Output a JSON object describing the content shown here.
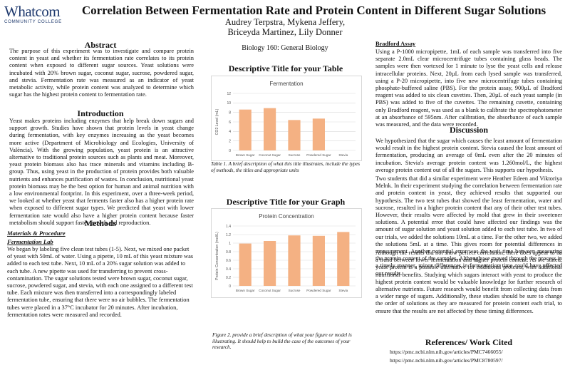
{
  "logo": {
    "name": "Whatcom",
    "subtitle": "COMMUNITY COLLEGE"
  },
  "title": "Correlation Between Fermentation Rate and Protein Content in Different Sugar Solutions",
  "authors": [
    "Audrey Terpstra, Mykena Jeffery,",
    "Briceyda Martinez, Lily Donner"
  ],
  "course": "Biology 160: General Biology",
  "abstract": {
    "heading": "Abstract",
    "text": "The purpose of this experiment was to investigate and compare protein content in yeast and whether its fermentation rate correlates to its protein content when exposed to different sugar sources. Yeast solutions were incubated with 20% brown sugar, coconut sugar, sucrose, powdered sugar, and stevia. Fermentation rate was measured as an indicator of yeast metabolic activity, while protein content was analyzed to determine which sugar has the highest protein content to fermentation rate."
  },
  "introduction": {
    "heading": "Introduction",
    "text": "Yeast makes proteins including enzymes that help break down sugars and support growth. Studies have shown that protein levels in yeast change during fermentation, with key enzymes increasing as the yeast becomes more active (Department of Microbiology and Ecologies, University of València). With the growing population, yeast protein is an attractive alternative to traditional protein sources such as plants and meat. Moreover, yeast protein biomass also has trace minerals and vitamins including B-group. Thus, using yeast in the production of protein provides both valuable nutrients and enhances purification of wastes. In conclusion, nutritional yeast protein biomass may be the best option for human and animal nutrition with a low environmental footprint. In this experiment, over a three-week period, we looked at whether yeast that ferments faster also has a higher protein rate when exposed to different sugar types. We predicted that yeast with lower fermentation rate would also have a higher protein content because faster metabolism should support faster growth and reproduction."
  },
  "methods": {
    "heading": "Methods",
    "sub1": "Materials & Procedure",
    "sub2": "Fermentation Lab",
    "text": "We began by labeling five clean test tubes (1-5). Next, we mixed one packet of yeast with 50mL of water. Using a pipette, 10 mL of this yeast mixture was added to each test tube. Next, 10 mL of a 20% sugar solution was added to each tube. A new pipette was used for transferring to prevent cross-contamination. The sugar solutions tested were brown sugar, coconut sugar, sucrose, powdered sugar, and stevia, with each one assigned to a different test tube. Each mixture was then transferred into a correspondingly labeled fermentation tube, ensuring that there were no air bubbles. The fermentation tubes were placed in a 37°C incubator for 20 minutes. After incubation, fermentation rates were measured and recorded."
  },
  "table_section": {
    "heading": "Descriptive Title for your Table",
    "caption": "Table 1. A brief description of what this title illustrates, include the types of methods, the titles and appropriate units"
  },
  "graph_section": {
    "heading": "Descriptive Title for your Graph",
    "caption": "Figure 2. provide a brief description of what your figure or model is illustrating. It should help to build the case of the outcomes of your research."
  },
  "chart_data": [
    {
      "type": "bar",
      "title": "Fermentation",
      "ylabel": "CO2 Level (mL)",
      "xlabel": "",
      "categories": [
        "Brown Sugar",
        "Coconut Sugar",
        "Sucrose",
        "Powdered Sugar",
        "Stevia"
      ],
      "values": [
        8.6,
        8.9,
        6.4,
        6.7,
        0
      ],
      "ylim": [
        0,
        12
      ],
      "yticks": [
        0,
        2,
        4,
        6,
        8,
        10,
        12
      ],
      "grid": true,
      "color": "#f4b183"
    },
    {
      "type": "bar",
      "title": "Protein Concentration",
      "ylabel": "Protein Concentration (mol/L)",
      "xlabel": "",
      "categories": [
        "Brown Sugar",
        "Coconut Sugar",
        "Sucrose",
        "Powdered Sugar",
        "Stevia"
      ],
      "values": [
        0.99,
        1.05,
        1.18,
        1.17,
        1.26
      ],
      "ylim": [
        0,
        1.4
      ],
      "yticks": [
        0,
        0.2,
        0.4,
        0.6,
        0.8,
        1,
        1.2,
        1.4
      ],
      "ytick_labels": [
        "0",
        "0.2",
        "0.4",
        "0.6",
        "0.8",
        "1",
        "1.2",
        "1.4"
      ],
      "grid": true,
      "color": "#f4b183"
    }
  ],
  "bradford": {
    "heading": "Bradford Assay",
    "text": "Using a P-1000 micropipette, 1mL of each sample was transferred into five separate 2.0mL clear microcentrifuge tubes containing glass beads. The samples were then vortexed for 1 minute to lyse the yeast cells and release intracellular proteins. Next, 20µL from each lysed sample was transferred, using a P-20 micropipette, into five new microcentrifuge tubes containing phosphate-buffered saline (PBS). For the protein assay, 900µL of Bradford reagent was added to six clean cuvettes. Then, 20µL of each yeast sample (in PBS) was added to five of the cuvettes. The remaining cuvette, containing only Bradford reagent, was used as a blank to calibrate the spectrophotometer at an absorbance of 595nm. After calibration, the absorbance of each sample was measured, and the data were recorded."
  },
  "discussion": {
    "heading": "Discussion",
    "p1": "We hypothesized that the sugar which causes the least amount of fermentation would result in the highest protein content. Stevia caused the least amount of fermentation, producing an average of 0mL even after the 20 minutes of incubation. Stevia's average protein content was 1.260mol/L, the highest average protein content out of all the sugars. This supports our hypothesis.",
    "p2": "Two students that did a similar experiment were Heather Edeen and Viktoriya Melnk. In their experiment studying the correlation between fermentation rate and protein content in yeast, they achieved results that supported our hypothesis. The two test tubes that showed the least fermentation, water and sucrose, resulted in a higher protein content that any of their other test tubes. However, their results were affected by mold that grew in their sweetener solutions. A potential error that could have affected our findings was the amount of sugar solution and yeast solution added to each test tube. In two of our trials, we added the solutions 10mL at a time. For the other two, we added the solutions 5mL at a time. This gives room for potential differences in measurement. Another potential error was the wait time between measuring the protein content of the samples. Although we moved through the process in a timely manner, minor differences in fermentation time could have affected our results.",
    "p3": "Although the results did not show perfect correlation, there does appear to be a trend between lower fermentation and higher protein content. As we stated, yeast protein is a possible alternative for traditional proteins, with additional nutritional benefits. Studying which sugars interact with yeast to produce the highest protein content would be valuable knowledge for further research of alternative nutrients. Future research would benefit from collecting data from a wider range of sugars. Additionally, these studies should be sure to change the order of solutions as they are measured for protein content each trial, to ensure that the results are not affected by these timing differences."
  },
  "references": {
    "heading": "References/ Work Cited",
    "items": [
      "https://pmc.ncbi.nlm.nih.gov/articles/PMC7466055/",
      "https://pmc.ncbi.nlm.nih.gov/articles/PMC8780597/"
    ]
  }
}
